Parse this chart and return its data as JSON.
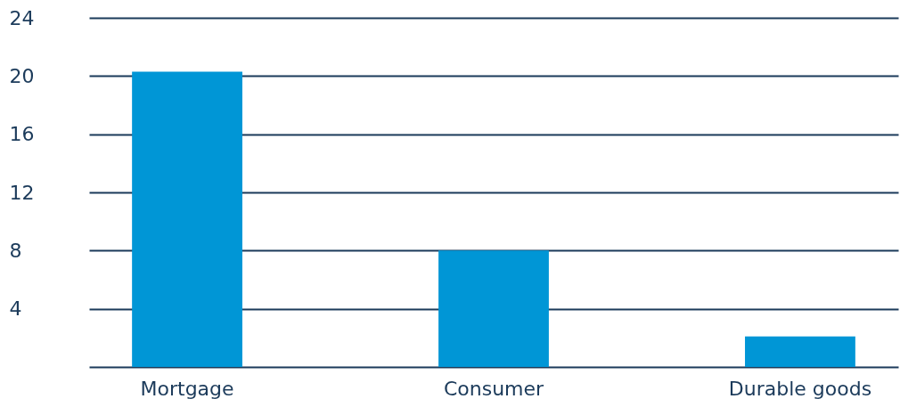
{
  "chart_data": {
    "type": "bar",
    "categories": [
      "Mortgage",
      "Consumer",
      "Durable goods"
    ],
    "values": [
      20.3,
      8.0,
      2.1
    ],
    "color": "#0096d6",
    "ylim": [
      0,
      24
    ],
    "yticks": [
      4,
      8,
      12,
      16,
      20,
      24
    ],
    "grid": "y"
  }
}
